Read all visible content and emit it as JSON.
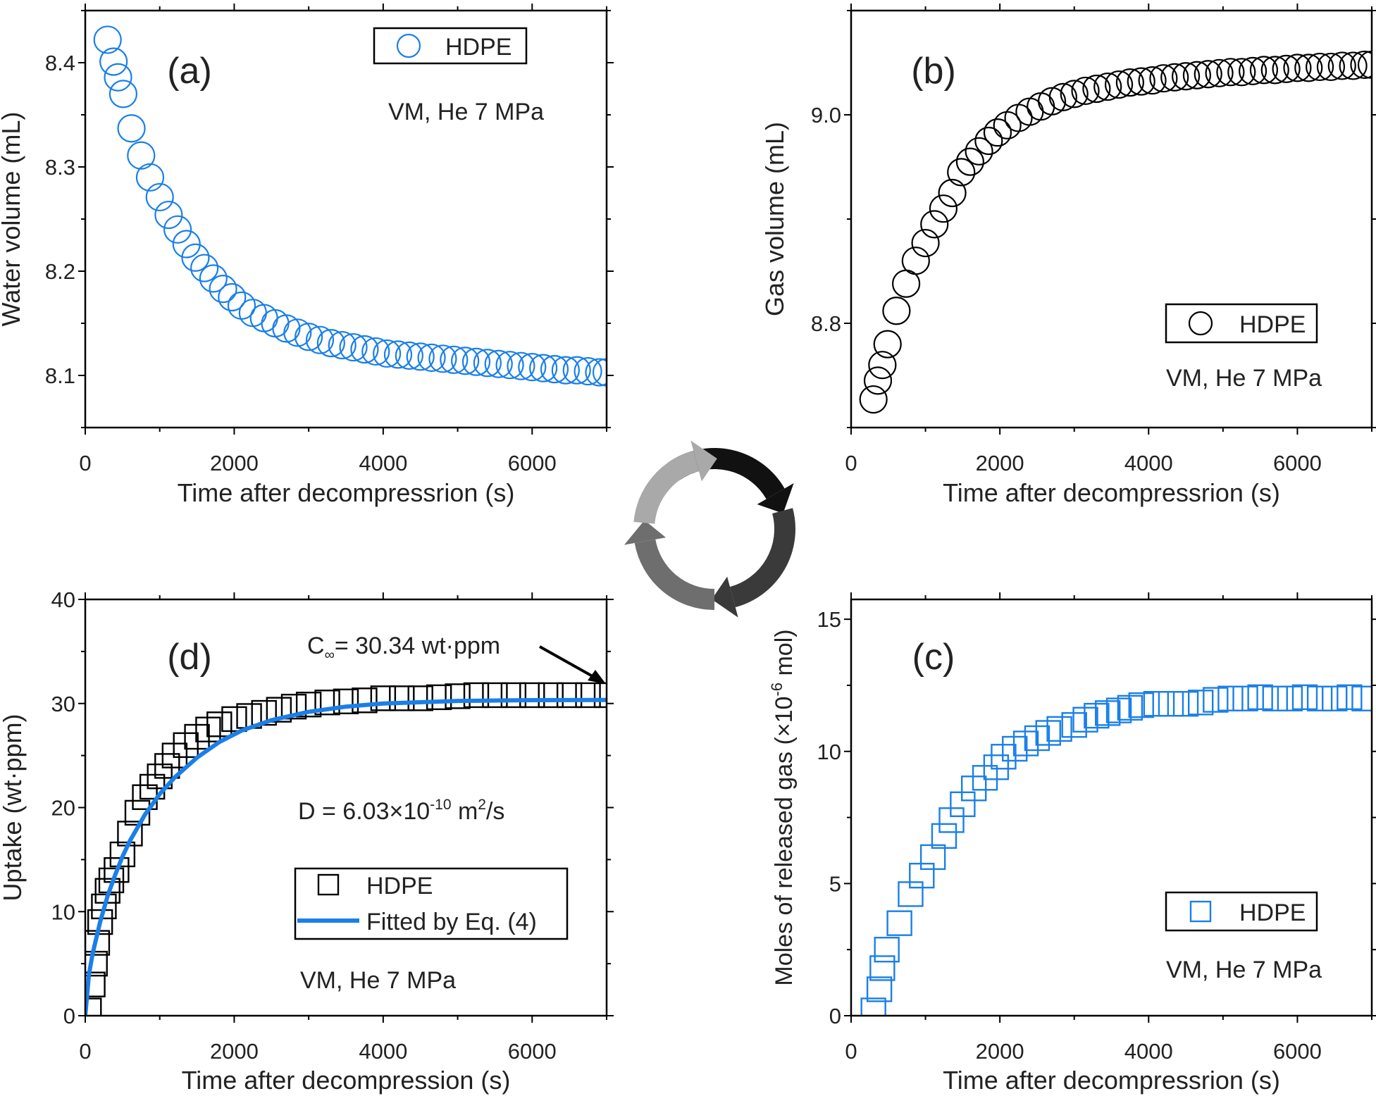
{
  "colors": {
    "blue": "#1a7fe8",
    "black": "#000000",
    "cycle": [
      "#111111",
      "#3a3a3a",
      "#6e6e6e",
      "#a9a9a9"
    ]
  },
  "chart_data": [
    {
      "id": "a",
      "type": "scatter",
      "panel_label": "(a)",
      "xlabel": "Time after decompressrion (s)",
      "ylabel": "Water volume (mL)",
      "xlim": [
        0,
        7000
      ],
      "ylim": [
        8.05,
        8.45
      ],
      "xticks": [
        0,
        2000,
        4000,
        6000
      ],
      "xtick_labels": [
        "0",
        "2000",
        "4000",
        "6000"
      ],
      "yticks": [
        8.1,
        8.2,
        8.3,
        8.4
      ],
      "ytick_labels": [
        "8.1",
        "8.2",
        "8.3",
        "8.4"
      ],
      "marker": "circle-open",
      "color": "#1a7fe8",
      "legend": [
        {
          "label": "HDPE",
          "marker": "circle-open"
        }
      ],
      "annotation": "VM, He 7 MPa",
      "series": [
        {
          "name": "HDPE",
          "x": [
            300,
            380,
            440,
            510,
            620,
            750,
            870,
            1000,
            1120,
            1240,
            1360,
            1480,
            1600,
            1720,
            1850,
            1970,
            2100,
            2250,
            2400,
            2550,
            2700,
            2850,
            3000,
            3150,
            3300,
            3450,
            3600,
            3750,
            3900,
            4050,
            4200,
            4350,
            4500,
            4650,
            4800,
            4950,
            5100,
            5250,
            5400,
            5550,
            5700,
            5850,
            6000,
            6150,
            6300,
            6450,
            6600,
            6750,
            6900,
            7000
          ],
          "y": [
            8.422,
            8.401,
            8.386,
            8.37,
            8.337,
            8.311,
            8.29,
            8.271,
            8.254,
            8.24,
            8.226,
            8.213,
            8.203,
            8.193,
            8.183,
            8.175,
            8.167,
            8.16,
            8.155,
            8.15,
            8.145,
            8.141,
            8.137,
            8.134,
            8.131,
            8.129,
            8.127,
            8.125,
            8.123,
            8.121,
            8.12,
            8.119,
            8.118,
            8.117,
            8.116,
            8.115,
            8.114,
            8.113,
            8.112,
            8.111,
            8.11,
            8.109,
            8.108,
            8.107,
            8.106,
            8.105,
            8.105,
            8.104,
            8.103,
            8.103
          ]
        }
      ]
    },
    {
      "id": "b",
      "type": "scatter",
      "panel_label": "(b)",
      "xlabel": "Time after decompressrion (s)",
      "ylabel": "Gas volume (mL)",
      "xlim": [
        0,
        7000
      ],
      "ylim": [
        8.7,
        9.1
      ],
      "xticks": [
        0,
        2000,
        4000,
        6000
      ],
      "xtick_labels": [
        "0",
        "2000",
        "4000",
        "6000"
      ],
      "yticks": [
        8.8,
        9.0
      ],
      "ytick_labels": [
        "8.8",
        "9.0"
      ],
      "marker": "circle-open",
      "color": "#000000",
      "legend": [
        {
          "label": "HDPE",
          "marker": "circle-open"
        }
      ],
      "annotation": "VM, He 7 MPa",
      "series": [
        {
          "name": "HDPE",
          "x": [
            300,
            360,
            420,
            490,
            610,
            740,
            870,
            1000,
            1120,
            1240,
            1360,
            1480,
            1600,
            1720,
            1850,
            1970,
            2100,
            2250,
            2400,
            2550,
            2700,
            2850,
            3000,
            3150,
            3300,
            3450,
            3600,
            3750,
            3900,
            4050,
            4200,
            4350,
            4500,
            4650,
            4800,
            4950,
            5100,
            5250,
            5400,
            5550,
            5700,
            5850,
            6000,
            6150,
            6300,
            6450,
            6600,
            6750,
            6900,
            7000
          ],
          "y": [
            8.727,
            8.745,
            8.76,
            8.78,
            8.812,
            8.838,
            8.86,
            8.877,
            8.895,
            8.91,
            8.925,
            8.945,
            8.955,
            8.965,
            8.975,
            8.983,
            8.99,
            8.997,
            9.003,
            9.008,
            9.013,
            9.017,
            9.02,
            9.023,
            9.025,
            9.027,
            9.029,
            9.031,
            9.032,
            9.033,
            9.035,
            9.036,
            9.037,
            9.038,
            9.039,
            9.04,
            9.041,
            9.041,
            9.042,
            9.043,
            9.043,
            9.044,
            9.045,
            9.045,
            9.046,
            9.046,
            9.047,
            9.047,
            9.048,
            9.048
          ]
        }
      ]
    },
    {
      "id": "d",
      "type": "scatter",
      "panel_label": "(d)",
      "xlabel": "Time after decompression (s)",
      "ylabel": "Uptake (wt·ppm)",
      "xlim": [
        0,
        7000
      ],
      "ylim": [
        0,
        40
      ],
      "xticks": [
        0,
        2000,
        4000,
        6000
      ],
      "xtick_labels": [
        "0",
        "2000",
        "4000",
        "6000"
      ],
      "yticks": [
        0,
        10,
        20,
        30,
        40
      ],
      "ytick_labels": [
        "0",
        "10",
        "20",
        "30",
        "40"
      ],
      "marker": "square-open",
      "color": "#000000",
      "legend": [
        {
          "label": "HDPE",
          "marker": "square-open"
        },
        {
          "label": "Fitted by Eq. (4)",
          "marker": "line",
          "color": "#1a7fe8"
        }
      ],
      "annotation": "VM, He 7 MPa",
      "c_inf_label": {
        "main": "C",
        "sub": "∞",
        "rest": "= 30.34 wt·ppm"
      },
      "d_label": {
        "a": "D = 6.03×10",
        "sup1": "-10",
        "b": " m",
        "sup2": "2",
        "c": "/s"
      },
      "series": [
        {
          "name": "HDPE",
          "x": [
            50,
            100,
            130,
            160,
            200,
            250,
            300,
            350,
            420,
            500,
            600,
            700,
            800,
            900,
            1000,
            1100,
            1200,
            1350,
            1500,
            1650,
            1800,
            2000,
            2200,
            2400,
            2600,
            2800,
            3000,
            3250,
            3500,
            3750,
            4000,
            4250,
            4500,
            4750,
            5000,
            5250,
            5500,
            5750,
            6000,
            6250,
            6500,
            6750,
            7000
          ],
          "y": [
            0.5,
            3,
            5,
            7,
            9,
            10.5,
            12,
            13,
            14,
            15.5,
            17.5,
            19.5,
            21,
            22,
            23,
            24,
            25,
            26,
            26.8,
            27.5,
            28,
            28.5,
            28.8,
            29.1,
            29.4,
            29.7,
            29.9,
            30.1,
            30.2,
            30.3,
            30.5,
            30.5,
            30.5,
            30.6,
            30.7,
            30.8,
            30.8,
            30.8,
            30.8,
            30.8,
            30.8,
            30.8,
            30.8
          ]
        },
        {
          "name": "Fitted by Eq. (4)",
          "type": "line",
          "color": "#1a7fe8",
          "x": [
            0,
            50,
            100,
            200,
            300,
            400,
            500,
            600,
            800,
            1000,
            1200,
            1500,
            1800,
            2100,
            2500,
            3000,
            3500,
            4000,
            5000,
            6000,
            7000
          ],
          "y": [
            0,
            4,
            6,
            9,
            11.5,
            13.5,
            15.3,
            16.8,
            19.3,
            21.3,
            22.9,
            24.8,
            26.3,
            27.4,
            28.4,
            29.2,
            29.7,
            30.0,
            30.25,
            30.32,
            30.34
          ]
        }
      ]
    },
    {
      "id": "c",
      "type": "scatter",
      "panel_label": "(c)",
      "xlabel": "Time after decompressrion (s)",
      "ylabel": {
        "a": "Moles of released gas (×10",
        "sup": "-6",
        "b": " mol)"
      },
      "xlim": [
        0,
        7000
      ],
      "ylim": [
        0,
        15.75
      ],
      "xticks": [
        0,
        2000,
        4000,
        6000
      ],
      "xtick_labels": [
        "0",
        "2000",
        "4000",
        "6000"
      ],
      "yticks": [
        0,
        5,
        10,
        15
      ],
      "ytick_labels": [
        "0",
        "5",
        "10",
        "15"
      ],
      "marker": "square-open",
      "color": "#1a7fe8",
      "legend": [
        {
          "label": "HDPE",
          "marker": "square-open"
        }
      ],
      "annotation": "VM, He 7 MPa",
      "series": [
        {
          "name": "HDPE",
          "x": [
            300,
            380,
            420,
            480,
            650,
            800,
            950,
            1100,
            1250,
            1350,
            1500,
            1650,
            1800,
            1950,
            2050,
            2200,
            2350,
            2500,
            2650,
            2800,
            3000,
            3150,
            3300,
            3450,
            3600,
            3750,
            3900,
            4100,
            4300,
            4500,
            4700,
            4900,
            5100,
            5300,
            5500,
            5700,
            5900,
            6100,
            6300,
            6500,
            6700,
            6900
          ],
          "y": [
            0.2,
            1,
            1.8,
            2.5,
            3.5,
            4.6,
            5.3,
            6,
            6.8,
            7.4,
            8,
            8.6,
            9,
            9.4,
            9.8,
            10.1,
            10.3,
            10.5,
            10.7,
            10.85,
            11,
            11.2,
            11.35,
            11.45,
            11.55,
            11.65,
            11.75,
            11.8,
            11.8,
            11.8,
            11.85,
            11.95,
            12,
            12,
            12.05,
            12,
            12,
            12.05,
            12,
            12,
            12.05,
            12
          ]
        }
      ]
    }
  ]
}
